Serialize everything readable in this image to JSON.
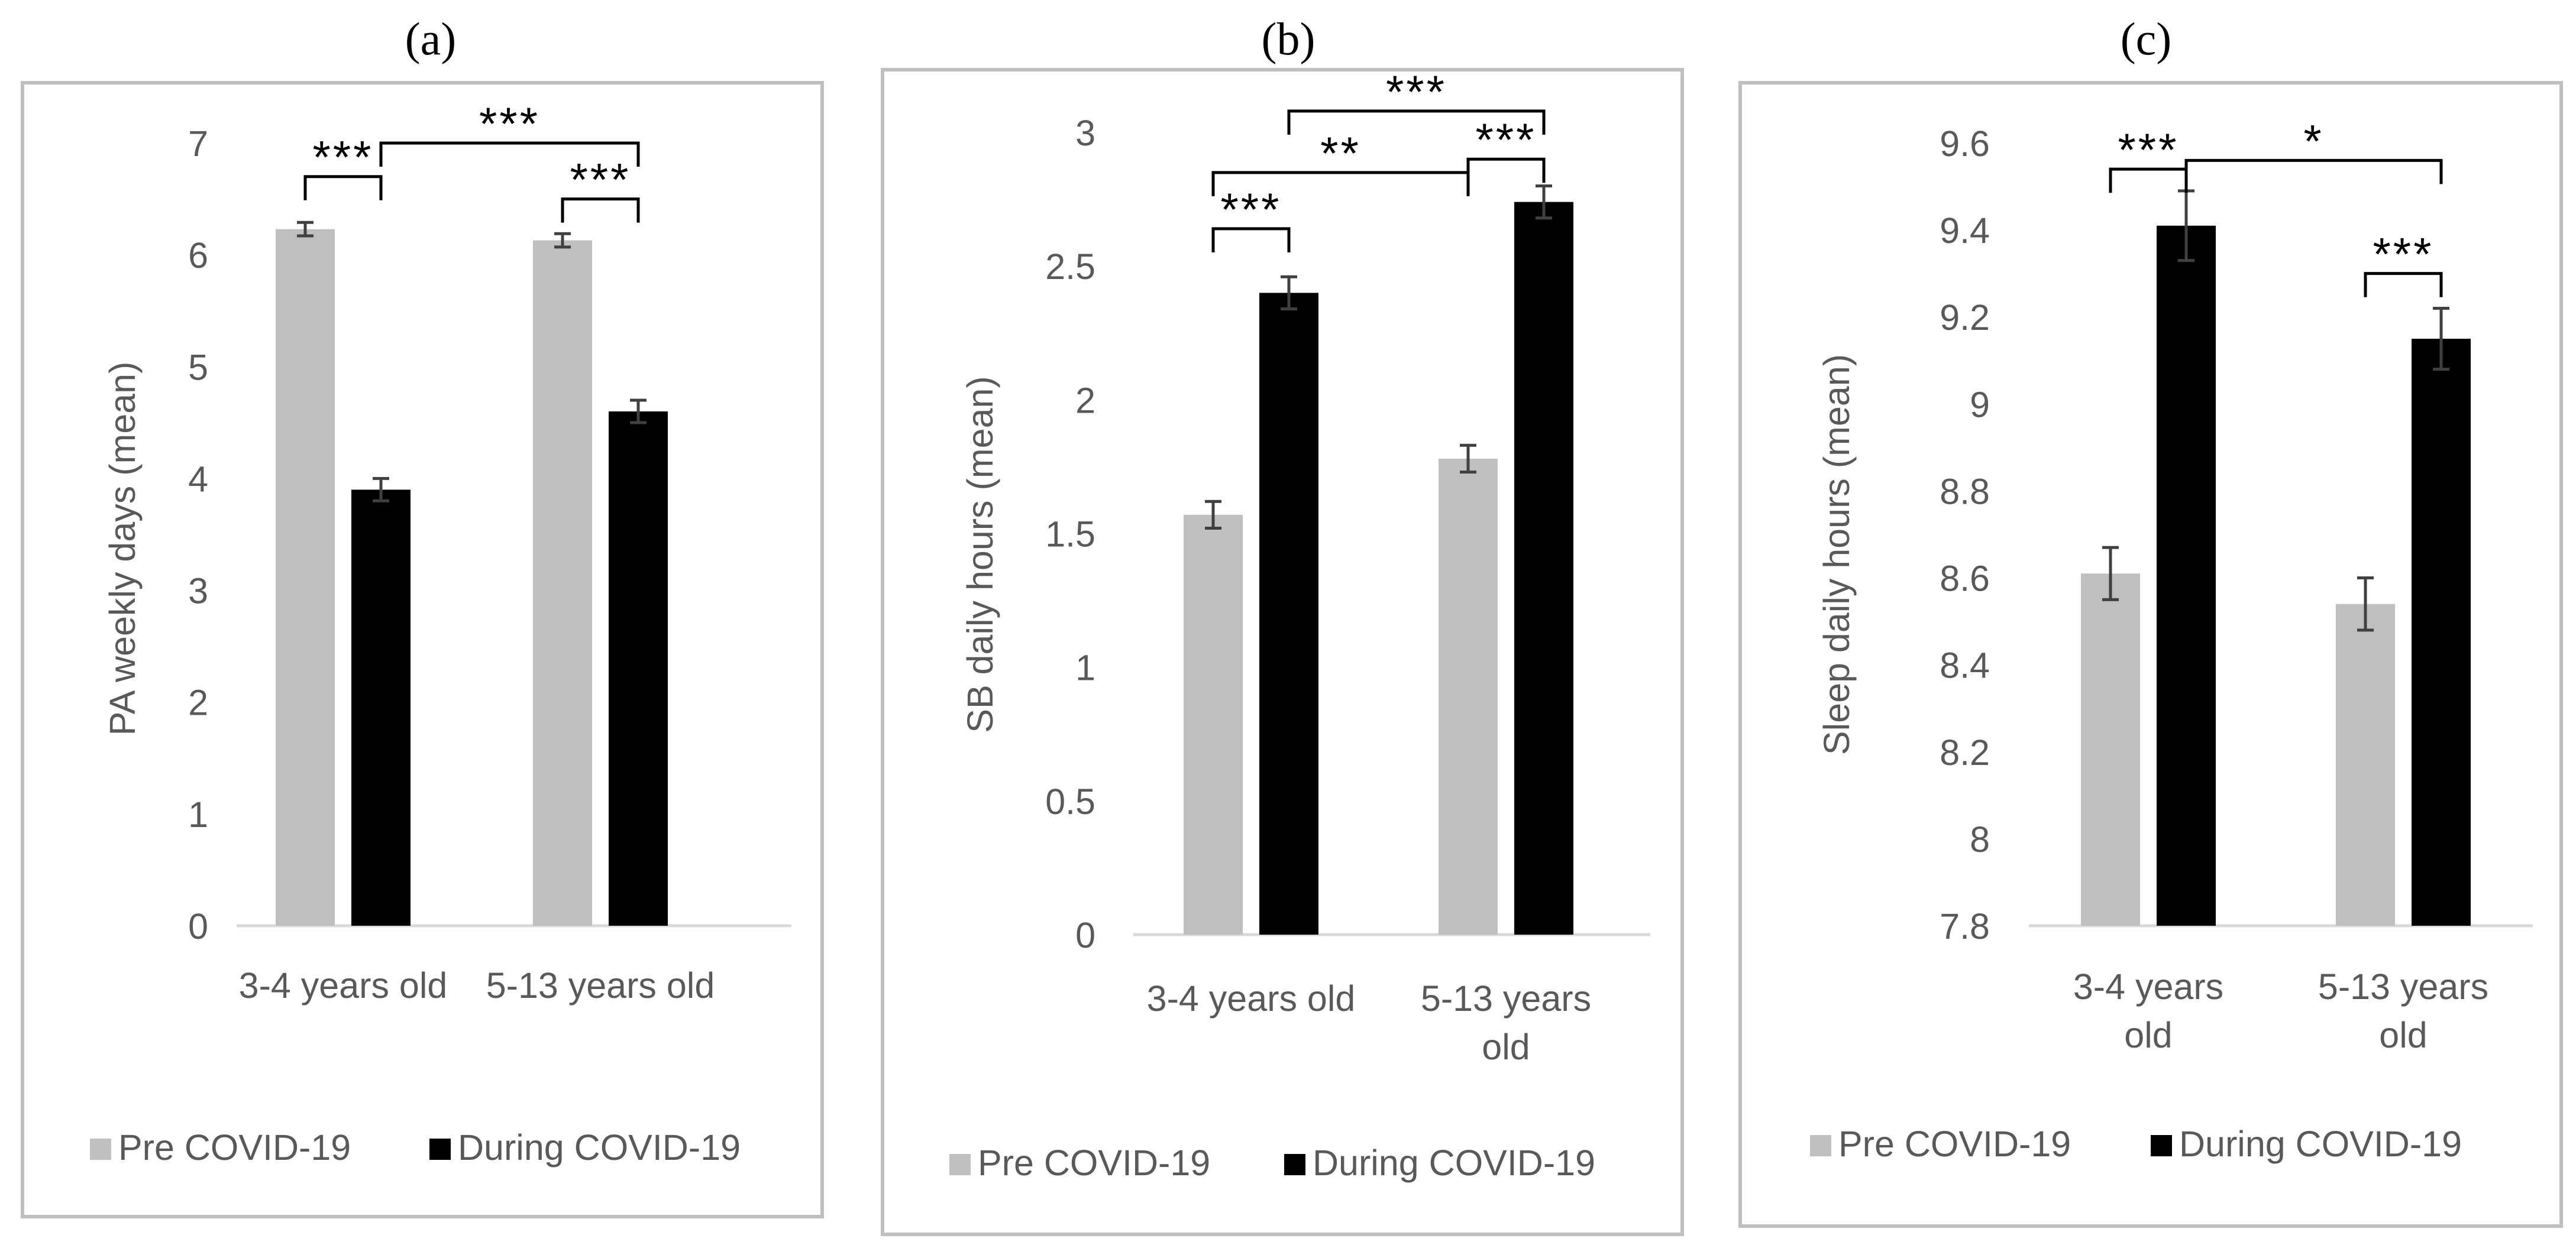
{
  "colors": {
    "pre": "#bfbfbf",
    "during": "#000000",
    "axis": "#d9d9d9",
    "frame": "#bfbfbf",
    "text": "#595959",
    "error": "#404040",
    "bracket": "#000000"
  },
  "legend": {
    "pre": "Pre COVID-19",
    "during": "During COVID-19"
  },
  "chart_data": [
    {
      "type": "bar",
      "panel": "(a)",
      "ylabel": "PA weekly days (mean)",
      "ylim": [
        0,
        7
      ],
      "yticks": [
        "0",
        "1",
        "2",
        "3",
        "4",
        "5",
        "6",
        "7"
      ],
      "categories": [
        "3-4 years old",
        "5-13 years old"
      ],
      "series": [
        {
          "name": "Pre COVID-19",
          "values": [
            6.23,
            6.13
          ],
          "errors": [
            0.06,
            0.06
          ]
        },
        {
          "name": "During COVID-19",
          "values": [
            3.9,
            4.6
          ],
          "errors": [
            0.1,
            0.1
          ]
        }
      ],
      "significance": [
        {
          "label": "***",
          "from": [
            0,
            0
          ],
          "to": [
            0,
            1
          ],
          "y": 6.7
        },
        {
          "label": "***",
          "from": [
            1,
            0
          ],
          "to": [
            1,
            1
          ],
          "y": 6.5
        },
        {
          "label": "***",
          "from": [
            0,
            1
          ],
          "to": [
            1,
            1
          ],
          "y": 7.0
        }
      ]
    },
    {
      "type": "bar",
      "panel": "(b)",
      "ylabel": "SB daily hours (mean)",
      "ylim": [
        0,
        3
      ],
      "yticks": [
        "0",
        "0.5",
        "1",
        "1.5",
        "2",
        "2.5",
        "3"
      ],
      "categories": [
        "3-4 years old",
        "5-13 years old"
      ],
      "series": [
        {
          "name": "Pre COVID-19",
          "values": [
            1.57,
            1.78
          ],
          "errors": [
            0.05,
            0.05
          ]
        },
        {
          "name": "During COVID-19",
          "values": [
            2.4,
            2.74
          ],
          "errors": [
            0.06,
            0.06
          ]
        }
      ],
      "significance": [
        {
          "label": "***",
          "from": [
            0,
            0
          ],
          "to": [
            0,
            1
          ],
          "y": 2.64
        },
        {
          "label": "**",
          "from": [
            0,
            0
          ],
          "to": [
            1,
            0
          ],
          "y": 2.85
        },
        {
          "label": "***",
          "from": [
            1,
            0
          ],
          "to": [
            1,
            1
          ],
          "y": 2.9
        },
        {
          "label": "***",
          "from": [
            0,
            1
          ],
          "to": [
            1,
            1
          ],
          "y": 3.08
        }
      ]
    },
    {
      "type": "bar",
      "panel": "(c)",
      "ylabel": "Sleep daily hours (mean)",
      "ylim": [
        7.8,
        9.6
      ],
      "yticks": [
        "7.8",
        "8",
        "8.2",
        "8.4",
        "8.6",
        "8.8",
        "9",
        "9.2",
        "9.4",
        "9.6"
      ],
      "categories": [
        "3-4 years old",
        "5-13 years old"
      ],
      "series": [
        {
          "name": "Pre COVID-19",
          "values": [
            8.61,
            8.54
          ],
          "errors": [
            0.06,
            0.06
          ]
        },
        {
          "name": "During COVID-19",
          "values": [
            9.41,
            9.15
          ],
          "errors": [
            0.08,
            0.07
          ]
        }
      ],
      "significance": [
        {
          "label": "***",
          "from": [
            0,
            0
          ],
          "to": [
            0,
            1
          ],
          "y": 9.54
        },
        {
          "label": "***",
          "from": [
            1,
            0
          ],
          "to": [
            1,
            1
          ],
          "y": 9.3
        },
        {
          "label": "*",
          "from": [
            0,
            1
          ],
          "to": [
            1,
            1
          ],
          "y": 9.56
        }
      ]
    }
  ]
}
